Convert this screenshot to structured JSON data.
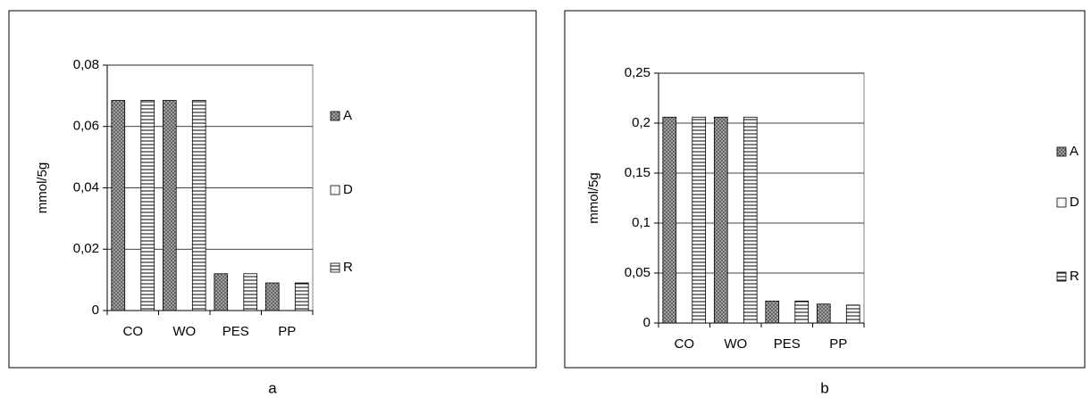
{
  "chart_data": [
    {
      "type": "bar",
      "caption": "a",
      "y_label": "mmol/5g",
      "categories": [
        "CO",
        "WO",
        "PES",
        "PP"
      ],
      "series": [
        {
          "name": "A",
          "color": "#8c8c8c",
          "pattern": "crosshatch",
          "values": [
            0.0685,
            0.0685,
            0.012,
            0.009
          ]
        },
        {
          "name": "D",
          "color": "#ffffff",
          "pattern": "vertical",
          "values": [
            0,
            0,
            0,
            0
          ]
        },
        {
          "name": "R",
          "color": "#ffffff",
          "pattern": "horizontal",
          "values": [
            0.0685,
            0.0685,
            0.012,
            0.009
          ]
        }
      ],
      "ylim": [
        0,
        0.08
      ],
      "yticks": [
        0,
        {
          "value": 0.02,
          "label": "0,02"
        },
        {
          "value": 0.04,
          "label": "0,04"
        },
        {
          "value": 0.06,
          "label": "0,06"
        },
        {
          "value": 0.08,
          "label": "0,08"
        }
      ],
      "grid": true,
      "legend": "right"
    },
    {
      "type": "bar",
      "caption": "b",
      "y_label": "mmol/5g",
      "categories": [
        "CO",
        "WO",
        "PES",
        "PP"
      ],
      "series": [
        {
          "name": "A",
          "color": "#8c8c8c",
          "pattern": "crosshatch",
          "values": [
            0.206,
            0.206,
            0.022,
            0.019
          ]
        },
        {
          "name": "D",
          "color": "#ffffff",
          "pattern": "vertical",
          "values": [
            0,
            0,
            0,
            0
          ]
        },
        {
          "name": "R",
          "color": "#ffffff",
          "pattern": "horizontal",
          "values": [
            0.206,
            0.206,
            0.022,
            0.018
          ]
        }
      ],
      "ylim": [
        0,
        0.25
      ],
      "yticks": [
        0,
        {
          "value": 0.05,
          "label": "0,05"
        },
        {
          "value": 0.1,
          "label": "0,1"
        },
        {
          "value": 0.15,
          "label": "0,15"
        },
        {
          "value": 0.2,
          "label": "0,2"
        },
        {
          "value": 0.25,
          "label": "0,25"
        }
      ],
      "grid": true,
      "legend": "right"
    }
  ]
}
